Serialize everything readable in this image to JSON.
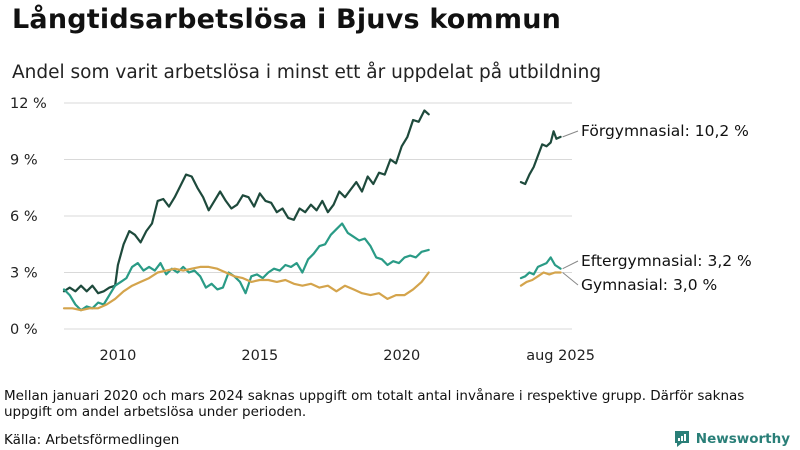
{
  "title": "Långtidsarbetslösa i Bjuvs kommun",
  "subtitle": "Andel som varit arbetslösa i minst ett år uppdelat på utbildning",
  "note": "Mellan januari 2020 och mars 2024 saknas uppgift om totalt antal invånare i respektive grupp. Därför saknas uppgift om andel arbetslösa under perioden.",
  "source": "Källa: Arbetsförmedlingen",
  "brand": "Newsworthy",
  "colors": {
    "forgymnasial": "#1e4a3c",
    "eftergymnasial": "#2a9b86",
    "gymnasial": "#d4a44c",
    "grid": "#d9d9d9",
    "brand": "#2a7f78"
  },
  "chart_data": {
    "type": "line",
    "xlim": [
      2008.1,
      2026.0
    ],
    "ylim": [
      0,
      12
    ],
    "grid": true,
    "y_ticks": [
      {
        "value": 12,
        "label": "12 %"
      },
      {
        "value": 9,
        "label": "9 %"
      },
      {
        "value": 6,
        "label": "6 %"
      },
      {
        "value": 3,
        "label": "3 %"
      },
      {
        "value": 0,
        "label": "0 %"
      }
    ],
    "x_ticks": [
      {
        "value": 2010,
        "label": "2010"
      },
      {
        "value": 2015,
        "label": "2015"
      },
      {
        "value": 2020,
        "label": "2020"
      },
      {
        "value": 2025.6,
        "label": "aug 2025"
      }
    ],
    "series": [
      {
        "name": "Förgymnasial",
        "end_label": "Förgymnasial: 10,2 %",
        "color_key": "forgymnasial",
        "segments": [
          [
            [
              2008.1,
              2.0
            ],
            [
              2008.3,
              2.2
            ],
            [
              2008.5,
              2.0
            ],
            [
              2008.7,
              2.3
            ],
            [
              2008.9,
              2.0
            ],
            [
              2009.1,
              2.3
            ],
            [
              2009.3,
              1.9
            ],
            [
              2009.5,
              2.0
            ],
            [
              2009.7,
              2.2
            ],
            [
              2009.9,
              2.3
            ],
            [
              2010.0,
              3.4
            ],
            [
              2010.2,
              4.5
            ],
            [
              2010.4,
              5.2
            ],
            [
              2010.6,
              5.0
            ],
            [
              2010.8,
              4.6
            ],
            [
              2011.0,
              5.2
            ],
            [
              2011.2,
              5.6
            ],
            [
              2011.4,
              6.8
            ],
            [
              2011.6,
              6.9
            ],
            [
              2011.8,
              6.5
            ],
            [
              2012.0,
              7.0
            ],
            [
              2012.2,
              7.6
            ],
            [
              2012.4,
              8.2
            ],
            [
              2012.6,
              8.1
            ],
            [
              2012.8,
              7.5
            ],
            [
              2013.0,
              7.0
            ],
            [
              2013.2,
              6.3
            ],
            [
              2013.4,
              6.8
            ],
            [
              2013.6,
              7.3
            ],
            [
              2013.8,
              6.8
            ],
            [
              2014.0,
              6.4
            ],
            [
              2014.2,
              6.6
            ],
            [
              2014.4,
              7.1
            ],
            [
              2014.6,
              7.0
            ],
            [
              2014.8,
              6.5
            ],
            [
              2015.0,
              7.2
            ],
            [
              2015.2,
              6.8
            ],
            [
              2015.4,
              6.7
            ],
            [
              2015.6,
              6.2
            ],
            [
              2015.8,
              6.4
            ],
            [
              2016.0,
              5.9
            ],
            [
              2016.2,
              5.8
            ],
            [
              2016.4,
              6.4
            ],
            [
              2016.6,
              6.2
            ],
            [
              2016.8,
              6.6
            ],
            [
              2017.0,
              6.3
            ],
            [
              2017.2,
              6.8
            ],
            [
              2017.4,
              6.2
            ],
            [
              2017.6,
              6.6
            ],
            [
              2017.8,
              7.3
            ],
            [
              2018.0,
              7.0
            ],
            [
              2018.2,
              7.4
            ],
            [
              2018.4,
              7.8
            ],
            [
              2018.6,
              7.3
            ],
            [
              2018.8,
              8.1
            ],
            [
              2019.0,
              7.7
            ],
            [
              2019.2,
              8.3
            ],
            [
              2019.4,
              8.2
            ],
            [
              2019.6,
              9.0
            ],
            [
              2019.8,
              8.8
            ],
            [
              2020.0,
              9.7
            ],
            [
              2020.2,
              10.2
            ],
            [
              2020.4,
              11.1
            ],
            [
              2020.6,
              11.0
            ],
            [
              2020.8,
              11.6
            ],
            [
              2020.95,
              11.4
            ]
          ],
          [
            [
              2024.2,
              7.8
            ],
            [
              2024.35,
              7.7
            ],
            [
              2024.5,
              8.2
            ],
            [
              2024.65,
              8.6
            ],
            [
              2024.8,
              9.2
            ],
            [
              2024.95,
              9.8
            ],
            [
              2025.1,
              9.7
            ],
            [
              2025.25,
              9.9
            ],
            [
              2025.35,
              10.5
            ],
            [
              2025.45,
              10.1
            ],
            [
              2025.6,
              10.2
            ]
          ]
        ]
      },
      {
        "name": "Eftergymnasial",
        "end_label": "Eftergymnasial:  3,2 %",
        "color_key": "eftergymnasial",
        "segments": [
          [
            [
              2008.1,
              2.1
            ],
            [
              2008.3,
              1.8
            ],
            [
              2008.5,
              1.3
            ],
            [
              2008.7,
              1.0
            ],
            [
              2008.9,
              1.2
            ],
            [
              2009.1,
              1.1
            ],
            [
              2009.3,
              1.4
            ],
            [
              2009.5,
              1.3
            ],
            [
              2009.7,
              1.8
            ],
            [
              2009.9,
              2.3
            ],
            [
              2010.1,
              2.5
            ],
            [
              2010.3,
              2.7
            ],
            [
              2010.5,
              3.3
            ],
            [
              2010.7,
              3.5
            ],
            [
              2010.9,
              3.1
            ],
            [
              2011.1,
              3.3
            ],
            [
              2011.3,
              3.1
            ],
            [
              2011.5,
              3.5
            ],
            [
              2011.7,
              2.9
            ],
            [
              2011.9,
              3.2
            ],
            [
              2012.1,
              3.0
            ],
            [
              2012.3,
              3.3
            ],
            [
              2012.5,
              3.0
            ],
            [
              2012.7,
              3.1
            ],
            [
              2012.9,
              2.8
            ],
            [
              2013.1,
              2.2
            ],
            [
              2013.3,
              2.4
            ],
            [
              2013.5,
              2.1
            ],
            [
              2013.7,
              2.2
            ],
            [
              2013.9,
              3.0
            ],
            [
              2014.1,
              2.8
            ],
            [
              2014.3,
              2.5
            ],
            [
              2014.5,
              1.9
            ],
            [
              2014.7,
              2.8
            ],
            [
              2014.9,
              2.9
            ],
            [
              2015.1,
              2.7
            ],
            [
              2015.3,
              3.0
            ],
            [
              2015.5,
              3.2
            ],
            [
              2015.7,
              3.1
            ],
            [
              2015.9,
              3.4
            ],
            [
              2016.1,
              3.3
            ],
            [
              2016.3,
              3.5
            ],
            [
              2016.5,
              3.0
            ],
            [
              2016.7,
              3.7
            ],
            [
              2016.9,
              4.0
            ],
            [
              2017.1,
              4.4
            ],
            [
              2017.3,
              4.5
            ],
            [
              2017.5,
              5.0
            ],
            [
              2017.7,
              5.3
            ],
            [
              2017.9,
              5.6
            ],
            [
              2018.1,
              5.1
            ],
            [
              2018.3,
              4.9
            ],
            [
              2018.5,
              4.7
            ],
            [
              2018.7,
              4.8
            ],
            [
              2018.9,
              4.4
            ],
            [
              2019.1,
              3.8
            ],
            [
              2019.3,
              3.7
            ],
            [
              2019.5,
              3.4
            ],
            [
              2019.7,
              3.6
            ],
            [
              2019.9,
              3.5
            ],
            [
              2020.1,
              3.8
            ],
            [
              2020.3,
              3.9
            ],
            [
              2020.5,
              3.8
            ],
            [
              2020.7,
              4.1
            ],
            [
              2020.95,
              4.2
            ]
          ],
          [
            [
              2024.2,
              2.7
            ],
            [
              2024.35,
              2.8
            ],
            [
              2024.5,
              3.0
            ],
            [
              2024.65,
              2.9
            ],
            [
              2024.8,
              3.3
            ],
            [
              2024.95,
              3.4
            ],
            [
              2025.1,
              3.5
            ],
            [
              2025.25,
              3.8
            ],
            [
              2025.4,
              3.4
            ],
            [
              2025.6,
              3.2
            ]
          ]
        ]
      },
      {
        "name": "Gymnasial",
        "end_label": "Gymnasial:  3,0 %",
        "color_key": "gymnasial",
        "segments": [
          [
            [
              2008.1,
              1.1
            ],
            [
              2008.4,
              1.1
            ],
            [
              2008.7,
              1.0
            ],
            [
              2009.0,
              1.1
            ],
            [
              2009.3,
              1.1
            ],
            [
              2009.6,
              1.3
            ],
            [
              2009.9,
              1.6
            ],
            [
              2010.2,
              2.0
            ],
            [
              2010.5,
              2.3
            ],
            [
              2010.8,
              2.5
            ],
            [
              2011.1,
              2.7
            ],
            [
              2011.4,
              3.0
            ],
            [
              2011.7,
              3.1
            ],
            [
              2012.0,
              3.2
            ],
            [
              2012.3,
              3.1
            ],
            [
              2012.6,
              3.2
            ],
            [
              2012.9,
              3.3
            ],
            [
              2013.2,
              3.3
            ],
            [
              2013.5,
              3.2
            ],
            [
              2013.8,
              3.0
            ],
            [
              2014.1,
              2.8
            ],
            [
              2014.4,
              2.7
            ],
            [
              2014.7,
              2.5
            ],
            [
              2015.0,
              2.6
            ],
            [
              2015.3,
              2.6
            ],
            [
              2015.6,
              2.5
            ],
            [
              2015.9,
              2.6
            ],
            [
              2016.2,
              2.4
            ],
            [
              2016.5,
              2.3
            ],
            [
              2016.8,
              2.4
            ],
            [
              2017.1,
              2.2
            ],
            [
              2017.4,
              2.3
            ],
            [
              2017.7,
              2.0
            ],
            [
              2018.0,
              2.3
            ],
            [
              2018.3,
              2.1
            ],
            [
              2018.6,
              1.9
            ],
            [
              2018.9,
              1.8
            ],
            [
              2019.2,
              1.9
            ],
            [
              2019.5,
              1.6
            ],
            [
              2019.8,
              1.8
            ],
            [
              2020.1,
              1.8
            ],
            [
              2020.4,
              2.1
            ],
            [
              2020.7,
              2.5
            ],
            [
              2020.95,
              3.0
            ]
          ],
          [
            [
              2024.2,
              2.3
            ],
            [
              2024.4,
              2.5
            ],
            [
              2024.6,
              2.6
            ],
            [
              2024.8,
              2.8
            ],
            [
              2025.0,
              3.0
            ],
            [
              2025.2,
              2.9
            ],
            [
              2025.4,
              3.0
            ],
            [
              2025.6,
              3.0
            ]
          ]
        ]
      }
    ]
  }
}
